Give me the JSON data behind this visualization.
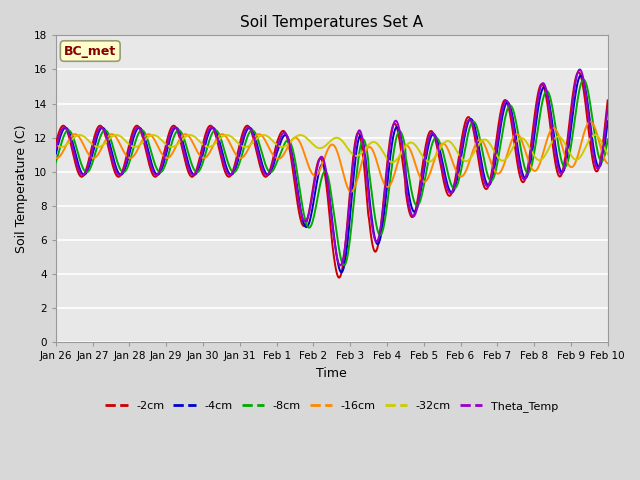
{
  "title": "Soil Temperatures Set A",
  "xlabel": "Time",
  "ylabel": "Soil Temperature (C)",
  "ylim": [
    0,
    18
  ],
  "yticks": [
    0,
    2,
    4,
    6,
    8,
    10,
    12,
    14,
    16,
    18
  ],
  "x_labels": [
    "Jan 26",
    "Jan 27",
    "Jan 28",
    "Jan 29",
    "Jan 30",
    "Jan 31",
    "Feb 1",
    "Feb 2",
    "Feb 3",
    "Feb 4",
    "Feb 5",
    "Feb 6",
    "Feb 7",
    "Feb 8",
    "Feb 9",
    "Feb 10"
  ],
  "colors": {
    "-2cm": "#cc0000",
    "-4cm": "#0000cc",
    "-8cm": "#00aa00",
    "-16cm": "#ff8800",
    "-32cm": "#cccc00",
    "Theta_Temp": "#9900cc"
  },
  "legend_label": "BC_met",
  "legend_text_color": "#880000",
  "legend_bg": "#ffffcc",
  "bg_color": "#d8d8d8",
  "plot_bg": "#e8e8e8",
  "grid_color": "#ffffff",
  "figsize": [
    6.4,
    4.8
  ],
  "dpi": 100
}
